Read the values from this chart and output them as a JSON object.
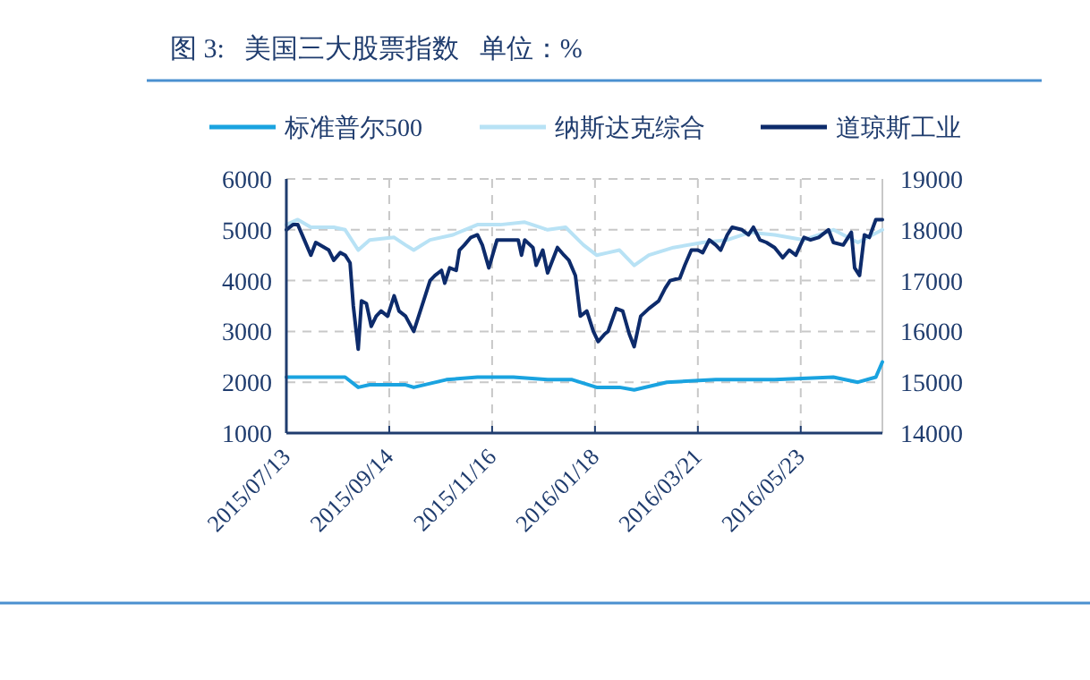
{
  "chart_data": {
    "type": "line",
    "title": "图 3:   美国三大股票指数   单位：%",
    "legend": "top",
    "grid": true,
    "marker": "none",
    "line_style": "solid",
    "xlim": [
      "2015-07-13",
      "2016-07-12"
    ],
    "xticks": [
      {
        "value": "2015-07-13",
        "label": "2015/07/13"
      },
      {
        "value": "2015-09-14",
        "label": "2015/09/14"
      },
      {
        "value": "2015-11-16",
        "label": "2015/11/16"
      },
      {
        "value": "2016-01-18",
        "label": "2016/01/18"
      },
      {
        "value": "2016-03-21",
        "label": "2016/03/21"
      },
      {
        "value": "2016-05-23",
        "label": "2016/05/23"
      }
    ],
    "ylim": [
      1000,
      6000
    ],
    "yticks": [
      1000,
      2000,
      3000,
      4000,
      5000,
      6000
    ],
    "y2lim": [
      14000,
      19000
    ],
    "y2ticks": [
      14000,
      15000,
      16000,
      17000,
      18000,
      19000
    ],
    "series": [
      {
        "name": "标准普尔500",
        "color": "#1aa3e0",
        "x": [
          "2015-07-13",
          "2015-08-18",
          "2015-08-26",
          "2015-09-02",
          "2015-09-24",
          "2015-09-29",
          "2015-10-19",
          "2015-11-07",
          "2015-11-29",
          "2015-12-20",
          "2016-01-04",
          "2016-01-19",
          "2016-02-02",
          "2016-02-11",
          "2016-03-02",
          "2016-04-01",
          "2016-05-07",
          "2016-06-12",
          "2016-06-27",
          "2016-07-08",
          "2016-07-12"
        ],
        "values": [
          2100,
          2100,
          1900,
          1950,
          1950,
          1900,
          2050,
          2100,
          2100,
          2050,
          2050,
          1900,
          1900,
          1850,
          2000,
          2050,
          2050,
          2100,
          2000,
          2100,
          2400
        ]
      },
      {
        "name": "纳斯达克综合",
        "color": "#b8e2f5",
        "x": [
          "2015-07-13",
          "2015-07-20",
          "2015-07-28",
          "2015-08-11",
          "2015-08-18",
          "2015-08-26",
          "2015-09-02",
          "2015-09-17",
          "2015-09-24",
          "2015-09-29",
          "2015-10-09",
          "2015-10-23",
          "2015-11-07",
          "2015-11-21",
          "2015-12-06",
          "2015-12-20",
          "2015-12-31",
          "2016-01-11",
          "2016-01-19",
          "2016-01-26",
          "2016-02-02",
          "2016-02-11",
          "2016-02-20",
          "2016-03-06",
          "2016-03-24",
          "2016-04-08",
          "2016-04-22",
          "2016-05-07",
          "2016-05-25",
          "2016-06-12",
          "2016-06-27",
          "2016-07-12"
        ],
        "values": [
          5100,
          5200,
          5050,
          5050,
          5000,
          4600,
          4800,
          4850,
          4700,
          4600,
          4800,
          4900,
          5100,
          5100,
          5150,
          5000,
          5050,
          4700,
          4500,
          4550,
          4600,
          4300,
          4500,
          4650,
          4750,
          4800,
          4950,
          4900,
          4800,
          5000,
          4750,
          5000
        ]
      },
      {
        "name": "道琼斯工业",
        "color": "#0d2b6b",
        "axis": "y2",
        "x": [
          "2015-07-13",
          "2015-07-17",
          "2015-07-20",
          "2015-07-24",
          "2015-07-28",
          "2015-07-31",
          "2015-08-08",
          "2015-08-11",
          "2015-08-15",
          "2015-08-18",
          "2015-08-21",
          "2015-08-23",
          "2015-08-26",
          "2015-08-28",
          "2015-08-31",
          "2015-09-03",
          "2015-09-06",
          "2015-09-09",
          "2015-09-13",
          "2015-09-17",
          "2015-09-20",
          "2015-09-24",
          "2015-09-29",
          "2015-10-05",
          "2015-10-09",
          "2015-10-12",
          "2015-10-16",
          "2015-10-18",
          "2015-10-21",
          "2015-10-25",
          "2015-10-27",
          "2015-10-30",
          "2015-11-03",
          "2015-11-07",
          "2015-11-10",
          "2015-11-14",
          "2015-11-19",
          "2015-11-25",
          "2015-12-02",
          "2015-12-04",
          "2015-12-06",
          "2015-12-11",
          "2015-12-13",
          "2015-12-17",
          "2015-12-20",
          "2015-12-26",
          "2015-12-30",
          "2016-01-02",
          "2016-01-06",
          "2016-01-09",
          "2016-01-13",
          "2016-01-17",
          "2016-01-20",
          "2016-01-24",
          "2016-01-26",
          "2016-01-31",
          "2016-02-04",
          "2016-02-08",
          "2016-02-11",
          "2016-02-15",
          "2016-02-20",
          "2016-02-26",
          "2016-03-01",
          "2016-03-04",
          "2016-03-10",
          "2016-03-13",
          "2016-03-17",
          "2016-03-21",
          "2016-03-24",
          "2016-03-28",
          "2016-04-01",
          "2016-04-04",
          "2016-04-08",
          "2016-04-11",
          "2016-04-17",
          "2016-04-21",
          "2016-04-24",
          "2016-04-28",
          "2016-05-02",
          "2016-05-07",
          "2016-05-12",
          "2016-05-16",
          "2016-05-20",
          "2016-05-25",
          "2016-05-29",
          "2016-06-03",
          "2016-06-09",
          "2016-06-12",
          "2016-06-18",
          "2016-06-23",
          "2016-06-25",
          "2016-06-28",
          "2016-07-01",
          "2016-07-04",
          "2016-07-08",
          "2016-07-12"
        ],
        "values": [
          18000,
          18100,
          18100,
          17800,
          17500,
          17750,
          17600,
          17400,
          17550,
          17500,
          17350,
          16500,
          15650,
          16600,
          16550,
          16100,
          16300,
          16400,
          16300,
          16700,
          16400,
          16300,
          16000,
          16600,
          17000,
          17100,
          17200,
          16950,
          17250,
          17200,
          17600,
          17700,
          17850,
          17900,
          17700,
          17250,
          17800,
          17800,
          17800,
          17500,
          17800,
          17650,
          17300,
          17600,
          17150,
          17650,
          17500,
          17400,
          17100,
          16300,
          16400,
          16000,
          15800,
          15950,
          16000,
          16450,
          16400,
          15950,
          15700,
          16300,
          16450,
          16600,
          16850,
          17000,
          17050,
          17300,
          17600,
          17600,
          17550,
          17800,
          17700,
          17600,
          17900,
          18050,
          18000,
          17900,
          18050,
          17800,
          17750,
          17650,
          17450,
          17600,
          17500,
          17850,
          17800,
          17850,
          18000,
          17750,
          17700,
          17950,
          17250,
          17100,
          17900,
          17850,
          18200,
          18200
        ]
      }
    ]
  }
}
